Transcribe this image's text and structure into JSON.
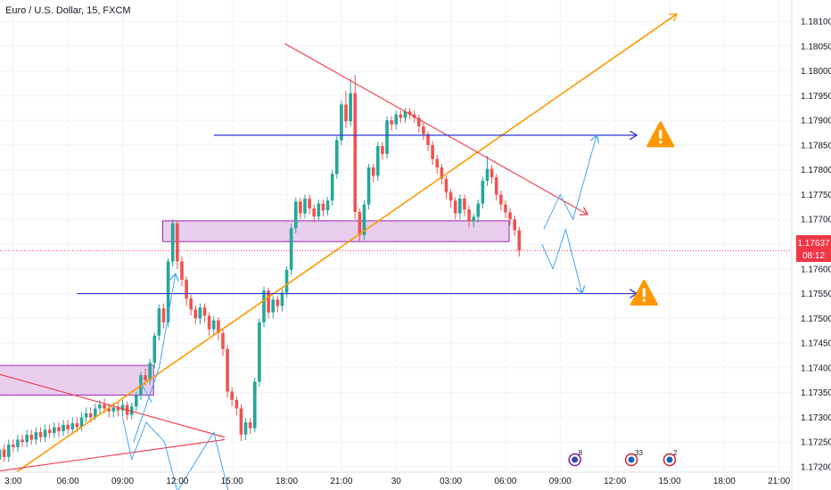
{
  "header": {
    "symbol_title": "Euro / U.S. Dollar, 15, FXCM"
  },
  "price_tag": {
    "price": "1.17637",
    "countdown": "08:12"
  },
  "colors": {
    "up_candle": "#26a69a",
    "down_candle": "#ef5350",
    "zone_fill": "#e1bee7",
    "zone_stroke": "#9c27b0",
    "trendline_orange": "#ff9800",
    "trendline_red": "#f23645",
    "level_blue": "#2d35d6",
    "projection_blue": "#42a5f5",
    "warning_orange": "#ff9800",
    "price_tag": "#f23645"
  },
  "chart_data": {
    "type": "candlestick",
    "title": "Euro / U.S. Dollar, 15, FXCM",
    "ylim": [
      1.1717,
      1.1813
    ],
    "y_ticks": [
      "1.17200",
      "1.17250",
      "1.17300",
      "1.17350",
      "1.17400",
      "1.17450",
      "1.17500",
      "1.17550",
      "1.17600",
      "1.17650",
      "1.17700",
      "1.17750",
      "1.17800",
      "1.17850",
      "1.17900",
      "1.17950",
      "1.18000",
      "1.18050",
      "1.18100"
    ],
    "x_ticks": [
      "3:00",
      "06:00",
      "09:00",
      "12:00",
      "15:00",
      "18:00",
      "21:00",
      "30",
      "03:00",
      "06:00",
      "09:00",
      "12:00",
      "15:00",
      "18:00",
      "21:00"
    ],
    "x_tick_hours": [
      3,
      6,
      9,
      12,
      15,
      18,
      21,
      24,
      27,
      30,
      33,
      36,
      39,
      42,
      45
    ],
    "candles": [
      [
        2,
        1.17195,
        1.17215,
        1.1719,
        1.17225,
        1.17185
      ],
      [
        2.25,
        1.17215,
        1.17235,
        1.1721,
        1.17245,
        1.17205
      ],
      [
        2.5,
        1.17235,
        1.1722,
        1.17215,
        1.17245,
        1.1721
      ],
      [
        2.75,
        1.1722,
        1.17245,
        1.17215,
        1.17255,
        1.1721
      ],
      [
        3,
        1.17245,
        1.1724,
        1.17235,
        1.17255,
        1.1723
      ],
      [
        3.25,
        1.1724,
        1.17255,
        1.17235,
        1.17265,
        1.1723
      ],
      [
        3.5,
        1.17255,
        1.1725,
        1.17245,
        1.17265,
        1.1724
      ],
      [
        3.75,
        1.1725,
        1.17265,
        1.17245,
        1.17275,
        1.1724
      ],
      [
        4,
        1.17265,
        1.17255,
        1.1725,
        1.17275,
        1.17245
      ],
      [
        4.25,
        1.17255,
        1.1727,
        1.1725,
        1.1728,
        1.17245
      ],
      [
        4.5,
        1.1727,
        1.1726,
        1.17255,
        1.1728,
        1.1725
      ],
      [
        4.75,
        1.1726,
        1.17275,
        1.17255,
        1.17285,
        1.1725
      ],
      [
        5,
        1.17275,
        1.17268,
        1.17262,
        1.17285,
        1.17258
      ],
      [
        5.25,
        1.17268,
        1.1728,
        1.17262,
        1.1729,
        1.17258
      ],
      [
        5.5,
        1.1728,
        1.17272,
        1.17265,
        1.1729,
        1.1726
      ],
      [
        5.75,
        1.17272,
        1.17285,
        1.17268,
        1.17295,
        1.17262
      ],
      [
        6,
        1.17285,
        1.17276,
        1.1727,
        1.17295,
        1.17266
      ],
      [
        6.25,
        1.17276,
        1.17288,
        1.17272,
        1.173,
        1.17268
      ],
      [
        6.5,
        1.17288,
        1.1728,
        1.17275,
        1.173,
        1.1727
      ],
      [
        6.75,
        1.1728,
        1.173,
        1.17276,
        1.1731,
        1.17272
      ],
      [
        7,
        1.173,
        1.17308,
        1.17294,
        1.1732,
        1.1729
      ],
      [
        7.25,
        1.17308,
        1.173,
        1.17295,
        1.1732,
        1.1729
      ],
      [
        7.5,
        1.173,
        1.17318,
        1.17298,
        1.17328,
        1.17294
      ],
      [
        7.75,
        1.17318,
        1.17326,
        1.17312,
        1.17335,
        1.17308
      ],
      [
        8,
        1.17326,
        1.17318,
        1.17312,
        1.17338,
        1.17308
      ],
      [
        8.25,
        1.17318,
        1.17312,
        1.17305,
        1.17328,
        1.173
      ],
      [
        8.5,
        1.17312,
        1.1732,
        1.17306,
        1.1733,
        1.173
      ],
      [
        8.75,
        1.1732,
        1.17314,
        1.17308,
        1.1733,
        1.17302
      ],
      [
        9,
        1.17314,
        1.17325,
        1.17308,
        1.17335,
        1.17302
      ],
      [
        9.25,
        1.17325,
        1.17305,
        1.17298,
        1.17332,
        1.17294
      ],
      [
        9.5,
        1.17305,
        1.17322,
        1.173,
        1.1733,
        1.17296
      ],
      [
        9.75,
        1.17322,
        1.17345,
        1.17318,
        1.17352,
        1.17312
      ],
      [
        10,
        1.17345,
        1.17385,
        1.1734,
        1.17392,
        1.17335
      ],
      [
        10.25,
        1.17385,
        1.17375,
        1.17368,
        1.17398,
        1.17364
      ],
      [
        10.5,
        1.17375,
        1.1741,
        1.1737,
        1.17418,
        1.17366
      ],
      [
        10.75,
        1.1741,
        1.17465,
        1.17405,
        1.17472,
        1.174
      ],
      [
        11,
        1.17465,
        1.1752,
        1.1746,
        1.17528,
        1.17455
      ],
      [
        11.25,
        1.1752,
        1.17492,
        1.17486,
        1.1753,
        1.1748
      ],
      [
        11.5,
        1.17492,
        1.17615,
        1.17488,
        1.17622,
        1.17482
      ],
      [
        11.75,
        1.17615,
        1.17692,
        1.1761,
        1.177,
        1.17605
      ],
      [
        12,
        1.17692,
        1.17615,
        1.17608,
        1.17698,
        1.176
      ],
      [
        12.25,
        1.17615,
        1.17578,
        1.1757,
        1.17625,
        1.17565
      ],
      [
        12.5,
        1.17578,
        1.1754,
        1.17532,
        1.17585,
        1.17526
      ],
      [
        12.75,
        1.1754,
        1.17518,
        1.17512,
        1.17548,
        1.17506
      ],
      [
        13,
        1.17518,
        1.175,
        1.17494,
        1.17526,
        1.17488
      ],
      [
        13.25,
        1.175,
        1.17522,
        1.17494,
        1.1753,
        1.17488
      ],
      [
        13.5,
        1.17522,
        1.17505,
        1.17498,
        1.1753,
        1.17492
      ],
      [
        13.75,
        1.17505,
        1.17478,
        1.1747,
        1.17512,
        1.17464
      ],
      [
        14,
        1.17478,
        1.17496,
        1.17472,
        1.17505,
        1.17466
      ],
      [
        14.25,
        1.17496,
        1.1747,
        1.17462,
        1.17502,
        1.17456
      ],
      [
        14.5,
        1.1747,
        1.17438,
        1.1743,
        1.17478,
        1.17424
      ],
      [
        14.75,
        1.17438,
        1.17352,
        1.17346,
        1.17446,
        1.1734
      ],
      [
        15,
        1.17352,
        1.17335,
        1.17328,
        1.1736,
        1.17322
      ],
      [
        15.25,
        1.17335,
        1.17318,
        1.1731,
        1.17342,
        1.17304
      ],
      [
        15.5,
        1.17318,
        1.17265,
        1.17258,
        1.17326,
        1.17252
      ],
      [
        15.75,
        1.17265,
        1.1729,
        1.1726,
        1.17298,
        1.17254
      ],
      [
        16,
        1.1729,
        1.17278,
        1.17272,
        1.17298,
        1.17266
      ],
      [
        16.25,
        1.17278,
        1.17372,
        1.17275,
        1.1738,
        1.1727
      ],
      [
        16.5,
        1.17372,
        1.17492,
        1.17368,
        1.175,
        1.17362
      ],
      [
        16.75,
        1.17492,
        1.17556,
        1.17488,
        1.17564,
        1.17482
      ],
      [
        17,
        1.17556,
        1.17512,
        1.17505,
        1.17562,
        1.175
      ],
      [
        17.25,
        1.17512,
        1.17538,
        1.17505,
        1.17545,
        1.175
      ],
      [
        17.5,
        1.17538,
        1.17525,
        1.17518,
        1.17545,
        1.17512
      ],
      [
        17.75,
        1.17525,
        1.17552,
        1.1752,
        1.1756,
        1.17514
      ],
      [
        18,
        1.17552,
        1.17598,
        1.17548,
        1.17605,
        1.17542
      ],
      [
        18.25,
        1.17598,
        1.17682,
        1.17594,
        1.1769,
        1.17588
      ],
      [
        18.5,
        1.17682,
        1.17736,
        1.17678,
        1.17744,
        1.17672
      ],
      [
        18.75,
        1.17736,
        1.17712,
        1.17705,
        1.17744,
        1.177
      ],
      [
        19,
        1.17712,
        1.17742,
        1.17708,
        1.1775,
        1.17702
      ],
      [
        19.25,
        1.17742,
        1.17722,
        1.17716,
        1.1775,
        1.1771
      ],
      [
        19.5,
        1.17722,
        1.17706,
        1.177,
        1.1773,
        1.17694
      ],
      [
        19.75,
        1.17706,
        1.17732,
        1.17702,
        1.1774,
        1.17696
      ],
      [
        20,
        1.17732,
        1.17718,
        1.17712,
        1.1774,
        1.17706
      ],
      [
        20.25,
        1.17718,
        1.17738,
        1.17714,
        1.17745,
        1.17708
      ],
      [
        20.5,
        1.17738,
        1.17792,
        1.17734,
        1.178,
        1.17728
      ],
      [
        20.75,
        1.17792,
        1.1786,
        1.17788,
        1.17868,
        1.17782
      ],
      [
        21,
        1.1786,
        1.17932,
        1.17856,
        1.1794,
        1.1785
      ],
      [
        21.25,
        1.17932,
        1.17898,
        1.1789,
        1.1796,
        1.17884
      ],
      [
        21.5,
        1.17898,
        1.17955,
        1.17894,
        1.17985,
        1.17888
      ],
      [
        21.75,
        1.17955,
        1.17715,
        1.17708,
        1.17992,
        1.177
      ],
      [
        22,
        1.17715,
        1.17668,
        1.1766,
        1.17722,
        1.17655
      ],
      [
        22.25,
        1.17668,
        1.1773,
        1.17664,
        1.17738,
        1.17658
      ],
      [
        22.5,
        1.1773,
        1.17805,
        1.17726,
        1.17812,
        1.1772
      ],
      [
        22.75,
        1.17805,
        1.17788,
        1.1778,
        1.17812,
        1.17775
      ],
      [
        23,
        1.17788,
        1.17848,
        1.17784,
        1.17856,
        1.17778
      ],
      [
        23.25,
        1.17848,
        1.17832,
        1.17825,
        1.17856,
        1.1782
      ],
      [
        23.5,
        1.17832,
        1.179,
        1.17828,
        1.17908,
        1.17822
      ],
      [
        23.75,
        1.179,
        1.17892,
        1.17885,
        1.17908,
        1.1788
      ],
      [
        24,
        1.17892,
        1.17912,
        1.17888,
        1.1792,
        1.17882
      ],
      [
        24.25,
        1.17912,
        1.17905,
        1.179,
        1.1792,
        1.17895
      ],
      [
        24.5,
        1.17905,
        1.17918,
        1.179,
        1.17925,
        1.17895
      ],
      [
        24.75,
        1.17918,
        1.17912,
        1.17908,
        1.17925,
        1.17903
      ],
      [
        25,
        1.17912,
        1.17905,
        1.179,
        1.1792,
        1.17895
      ],
      [
        25.25,
        1.17905,
        1.17888,
        1.17882,
        1.17912,
        1.17876
      ],
      [
        25.5,
        1.17888,
        1.17872,
        1.17866,
        1.17895,
        1.1786
      ],
      [
        25.75,
        1.17872,
        1.1785,
        1.17844,
        1.17878,
        1.17838
      ],
      [
        26,
        1.1785,
        1.17822,
        1.17816,
        1.17858,
        1.1781
      ],
      [
        26.25,
        1.17822,
        1.17805,
        1.17798,
        1.1783,
        1.17792
      ],
      [
        26.5,
        1.17805,
        1.17782,
        1.17775,
        1.17812,
        1.1777
      ],
      [
        26.75,
        1.17782,
        1.17755,
        1.17748,
        1.17788,
        1.17742
      ],
      [
        27,
        1.17755,
        1.17738,
        1.1773,
        1.17762,
        1.17724
      ],
      [
        27.25,
        1.17738,
        1.17712,
        1.17705,
        1.17745,
        1.177
      ],
      [
        27.5,
        1.17712,
        1.17742,
        1.17706,
        1.1775,
        1.177
      ],
      [
        27.75,
        1.17742,
        1.1772,
        1.17712,
        1.1775,
        1.17706
      ],
      [
        28,
        1.1772,
        1.17696,
        1.1769,
        1.17728,
        1.17684
      ],
      [
        28.25,
        1.17696,
        1.17705,
        1.1769,
        1.17712,
        1.17684
      ],
      [
        28.5,
        1.17705,
        1.17732,
        1.177,
        1.1774,
        1.17694
      ],
      [
        28.75,
        1.17732,
        1.17778,
        1.17728,
        1.17786,
        1.17722
      ],
      [
        29,
        1.17778,
        1.17802,
        1.17774,
        1.17828,
        1.17768
      ],
      [
        29.25,
        1.17802,
        1.17785,
        1.17778,
        1.1781,
        1.17772
      ],
      [
        29.5,
        1.17785,
        1.1775,
        1.17744,
        1.17792,
        1.17738
      ],
      [
        29.75,
        1.1775,
        1.1773,
        1.17724,
        1.17758,
        1.17718
      ],
      [
        30,
        1.1773,
        1.17714,
        1.17708,
        1.17738,
        1.17702
      ],
      [
        30.25,
        1.17714,
        1.177,
        1.17694,
        1.17722,
        1.17688
      ],
      [
        30.5,
        1.177,
        1.17678,
        1.17672,
        1.17708,
        1.17666
      ],
      [
        30.75,
        1.17678,
        1.17637,
        1.1763,
        1.17685,
        1.17625
      ]
    ],
    "zones": [
      {
        "x1": 11.2,
        "x2": 30.2,
        "y1": 1.17655,
        "y2": 1.17697
      },
      {
        "x1": 0,
        "x2": 10.7,
        "y1": 1.17345,
        "y2": 1.17405
      }
    ],
    "trendlines": [
      {
        "color": "orange",
        "x1": 3.2,
        "x2": 39.4,
        "y1": 1.1719,
        "y2": 1.18115,
        "arrow": true
      },
      {
        "color": "red",
        "x1": 17.9,
        "x2": 34.5,
        "y1": 1.18055,
        "y2": 1.1771,
        "arrow": true
      },
      {
        "color": "red",
        "x1": 0,
        "x2": 14.6,
        "y1": 1.1718,
        "y2": 1.17255,
        "arrow": false
      },
      {
        "color": "red",
        "x1": 0,
        "x2": 14.6,
        "y1": 1.1741,
        "y2": 1.1726,
        "arrow": false
      }
    ],
    "levels": [
      {
        "y": 1.1787,
        "x1": 14.0,
        "x2": 37.2
      },
      {
        "y": 1.1755,
        "x1": 6.5,
        "x2": 37.2
      }
    ],
    "projections": [
      {
        "points": [
          [
            32.1,
            1.1768
          ],
          [
            33.0,
            1.1775
          ],
          [
            33.7,
            1.177
          ],
          [
            35.0,
            1.1787
          ]
        ]
      },
      {
        "points": [
          [
            32.0,
            1.1765
          ],
          [
            32.6,
            1.176
          ],
          [
            33.3,
            1.1768
          ],
          [
            34.2,
            1.1755
          ]
        ]
      },
      {
        "points": [
          [
            9.6,
            1.1725
          ],
          [
            11.0,
            1.174
          ],
          [
            11.9,
            1.1759
          ]
        ]
      },
      {
        "points": [
          [
            10.0,
            1.1737
          ],
          [
            10.6,
            1.1733
          ]
        ]
      },
      {
        "points": [
          [
            9.0,
            1.173
          ],
          [
            9.5,
            1.17215
          ],
          [
            10.3,
            1.1729
          ],
          [
            11.3,
            1.1725
          ]
        ]
      },
      {
        "points": [
          [
            11.3,
            1.1725
          ],
          [
            12.0,
            1.1715
          ]
        ]
      },
      {
        "points": [
          [
            12.0,
            1.1715
          ],
          [
            14.0,
            1.1727
          ],
          [
            14.8,
            1.1715
          ]
        ]
      }
    ],
    "event_markers": [
      {
        "x": 33.8,
        "count": "8"
      },
      {
        "x": 36.9,
        "count": "33"
      },
      {
        "x": 39.0,
        "count": "2"
      }
    ],
    "warnings": [
      {
        "x": 38.5,
        "y": 1.1787
      },
      {
        "x": 37.6,
        "y": 1.1755
      }
    ]
  }
}
